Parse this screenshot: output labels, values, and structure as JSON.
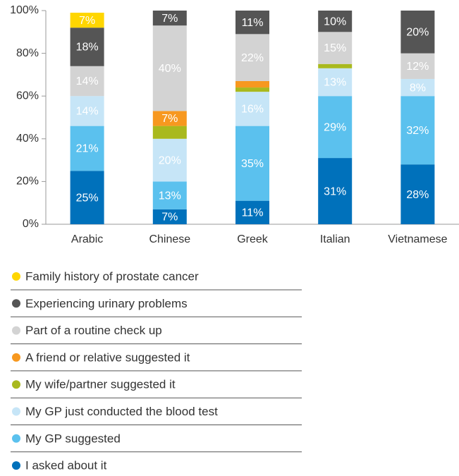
{
  "chart_data": {
    "type": "stacked_bar",
    "categories": [
      "Arabic",
      "Chinese",
      "Greek",
      "Italian",
      "Vietnamese"
    ],
    "ylim": [
      0,
      100
    ],
    "yticks": [
      {
        "value": 0,
        "label": "0%"
      },
      {
        "value": 20,
        "label": "20%"
      },
      {
        "value": 40,
        "label": "40%"
      },
      {
        "value": 60,
        "label": "60%"
      },
      {
        "value": 80,
        "label": "80%"
      },
      {
        "value": 100,
        "label": "100%"
      }
    ],
    "series": [
      {
        "name": "I asked about it",
        "color": "#0071bb",
        "values": [
          25,
          7,
          11,
          31,
          28
        ],
        "value_labels": [
          "25%",
          "7%",
          "11%",
          "31%",
          "28%"
        ]
      },
      {
        "name": "My GP suggested",
        "color": "#5bc1ee",
        "values": [
          21,
          13,
          35,
          29,
          32
        ],
        "value_labels": [
          "21%",
          "13%",
          "35%",
          "29%",
          "32%"
        ]
      },
      {
        "name": "My GP just conducted the blood test",
        "color": "#c6e5f7",
        "values": [
          14,
          20,
          16,
          13,
          8
        ],
        "value_labels": [
          "14%",
          "20%",
          "16%",
          "13%",
          "8%"
        ]
      },
      {
        "name": "My wife/partner suggested it",
        "color": "#a9b91e",
        "values": [
          0,
          6,
          2,
          2,
          0
        ],
        "value_labels": [
          null,
          null,
          null,
          null,
          null
        ]
      },
      {
        "name": "A friend or relative suggested it",
        "color": "#f7981f",
        "values": [
          0,
          7,
          3,
          0,
          0
        ],
        "value_labels": [
          null,
          "7%",
          null,
          null,
          null
        ]
      },
      {
        "name": "Part of a routine check up",
        "color": "#d3d3d3",
        "values": [
          14,
          40,
          22,
          15,
          12
        ],
        "value_labels": [
          "14%",
          "40%",
          "22%",
          "15%",
          "12%"
        ]
      },
      {
        "name": "Experiencing urinary problems",
        "color": "#555555",
        "values": [
          18,
          7,
          11,
          10,
          20
        ],
        "value_labels": [
          "18%",
          "7%",
          "11%",
          "10%",
          "20%"
        ]
      },
      {
        "name": "Family history of prostate cancer",
        "color": "#ffd600",
        "values": [
          7,
          0,
          0,
          0,
          0
        ],
        "value_labels": [
          "7%",
          null,
          null,
          null,
          null
        ]
      }
    ]
  }
}
